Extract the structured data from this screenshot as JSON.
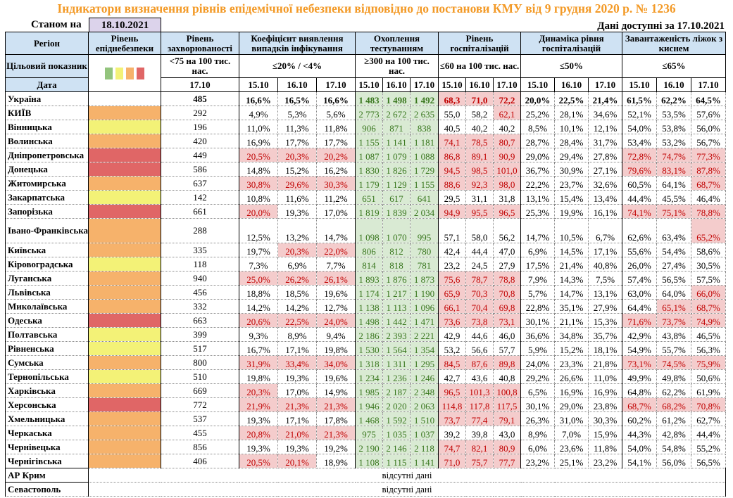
{
  "title": "Індикатори визначення рівнів епідемічної небезпеки відповідно до постанови КМУ від 9 грудня 2020 р. № 1236",
  "as_of_label": "Станом на",
  "as_of_date": "18.10.2021",
  "available": "Дані доступні за 17.10.2021",
  "headers": {
    "region": "Регіон",
    "level": "Рівень епіднебезпеки",
    "incidence": "Рівень захворюваності",
    "detection": "Коефіцієнт виявлення випадків інфікування",
    "testing": "Охоплення тестуванням",
    "hosp": "Рівень госпіталізацій",
    "dyn": "Динаміка рівня госпіталізацій",
    "beds": "Завантаженість ліжок з киснем"
  },
  "targets": {
    "label": "Цільовий показник",
    "incidence": "<75 на 100 тис. нас.",
    "detection": "≤20% / <4%",
    "testing": "≥300 на 100 тис. нас.",
    "hosp": "≤60 на 100 тис. нас.",
    "dyn": "≤50%",
    "beds": "≤65%"
  },
  "date_label": "Дата",
  "inc_date": "17.10",
  "dates": [
    "15.10",
    "16.10",
    "17.10"
  ],
  "level_colors": {
    "green": "#93c47d",
    "yellow": "#f3f277",
    "orange": "#f6b26b",
    "red": "#e06666"
  },
  "total": {
    "name": "Україна",
    "inc": "485",
    "det": [
      "16,6%",
      "16,5%",
      "16,6%"
    ],
    "test": [
      "1 483",
      "1 498",
      "1 492"
    ],
    "hosp": [
      "68,3",
      "71,0",
      "72,2"
    ],
    "dyn": [
      "20,0%",
      "22,5%",
      "21,4%"
    ],
    "beds": [
      "61,5%",
      "62,2%",
      "64,5%"
    ]
  },
  "rows": [
    {
      "name": "КИЇВ",
      "lvl": "orange",
      "inc": "292",
      "det": [
        "4,9%",
        "5,3%",
        "5,6%"
      ],
      "test": [
        "2 773",
        "2 672",
        "2 635"
      ],
      "hosp": [
        "55,0",
        "58,2",
        "62,1"
      ],
      "dyn": [
        "25,2%",
        "28,1%",
        "34,6%"
      ],
      "beds": [
        "52,1%",
        "53,5%",
        "57,6%"
      ]
    },
    {
      "name": "Вінницька",
      "lvl": "yellow",
      "inc": "196",
      "det": [
        "11,0%",
        "11,3%",
        "11,8%"
      ],
      "test": [
        "906",
        "871",
        "838"
      ],
      "hosp": [
        "40,5",
        "40,2",
        "40,2"
      ],
      "dyn": [
        "8,5%",
        "10,1%",
        "12,1%"
      ],
      "beds": [
        "54,0%",
        "53,8%",
        "56,0%"
      ]
    },
    {
      "name": "Волинська",
      "lvl": "orange",
      "inc": "420",
      "det": [
        "16,9%",
        "17,7%",
        "17,7%"
      ],
      "test": [
        "1 155",
        "1 141",
        "1 181"
      ],
      "hosp": [
        "74,1",
        "78,5",
        "80,7"
      ],
      "dyn": [
        "28,7%",
        "28,4%",
        "31,7%"
      ],
      "beds": [
        "53,4%",
        "53,2%",
        "56,7%"
      ]
    },
    {
      "name": "Дніпропетровська",
      "lvl": "red",
      "inc": "449",
      "det": [
        "20,5%",
        "20,3%",
        "20,2%"
      ],
      "test": [
        "1 087",
        "1 079",
        "1 088"
      ],
      "hosp": [
        "86,8",
        "89,1",
        "90,9"
      ],
      "dyn": [
        "29,0%",
        "29,4%",
        "27,8%"
      ],
      "beds": [
        "72,8%",
        "74,7%",
        "77,3%"
      ]
    },
    {
      "name": "Донецька",
      "lvl": "red",
      "inc": "586",
      "det": [
        "14,8%",
        "15,2%",
        "16,2%"
      ],
      "test": [
        "1 830",
        "1 826",
        "1 729"
      ],
      "hosp": [
        "94,5",
        "98,5",
        "101,0"
      ],
      "dyn": [
        "36,7%",
        "30,9%",
        "27,1%"
      ],
      "beds": [
        "79,6%",
        "83,1%",
        "87,8%"
      ]
    },
    {
      "name": "Житомирська",
      "lvl": "orange",
      "inc": "637",
      "det": [
        "30,8%",
        "29,6%",
        "30,3%"
      ],
      "test": [
        "1 179",
        "1 129",
        "1 155"
      ],
      "hosp": [
        "88,6",
        "92,3",
        "98,0"
      ],
      "dyn": [
        "22,2%",
        "23,7%",
        "32,6%"
      ],
      "beds": [
        "60,5%",
        "64,1%",
        "68,7%"
      ]
    },
    {
      "name": "Закарпатська",
      "lvl": "yellow",
      "inc": "142",
      "det": [
        "10,8%",
        "11,6%",
        "11,2%"
      ],
      "test": [
        "651",
        "617",
        "641"
      ],
      "hosp": [
        "29,5",
        "31,1",
        "31,8"
      ],
      "dyn": [
        "13,1%",
        "15,4%",
        "13,4%"
      ],
      "beds": [
        "44,4%",
        "45,5%",
        "46,4%"
      ]
    },
    {
      "name": "Запорізька",
      "lvl": "red",
      "inc": "661",
      "det": [
        "20,0%",
        "19,3%",
        "17,0%"
      ],
      "test": [
        "1 819",
        "1 839",
        "2 034"
      ],
      "hosp": [
        "94,9",
        "95,5",
        "96,5"
      ],
      "dyn": [
        "25,3%",
        "19,9%",
        "16,1%"
      ],
      "beds": [
        "74,1%",
        "75,1%",
        "78,8%"
      ]
    },
    {
      "name": "Івано-Франківська",
      "lvl": "orange",
      "inc": "288",
      "det": [
        "12,5%",
        "13,2%",
        "14,7%"
      ],
      "test": [
        "1 098",
        "1 070",
        "995"
      ],
      "hosp": [
        "57,1",
        "58,0",
        "56,2"
      ],
      "dyn": [
        "14,7%",
        "10,5%",
        "6,7%"
      ],
      "beds": [
        "62,6%",
        "63,4%",
        "65,2%"
      ]
    },
    {
      "name": "Київська",
      "lvl": "orange",
      "inc": "335",
      "det": [
        "19,7%",
        "20,3%",
        "22,0%"
      ],
      "test": [
        "806",
        "812",
        "780"
      ],
      "hosp": [
        "42,4",
        "44,4",
        "47,0"
      ],
      "dyn": [
        "6,9%",
        "14,5%",
        "17,1%"
      ],
      "beds": [
        "55,6%",
        "54,4%",
        "58,6%"
      ]
    },
    {
      "name": "Кіровоградська",
      "lvl": "yellow",
      "inc": "118",
      "det": [
        "7,3%",
        "6,9%",
        "7,7%"
      ],
      "test": [
        "814",
        "818",
        "781"
      ],
      "hosp": [
        "23,2",
        "24,5",
        "27,9"
      ],
      "dyn": [
        "17,5%",
        "21,4%",
        "40,8%"
      ],
      "beds": [
        "26,0%",
        "27,4%",
        "30,5%"
      ]
    },
    {
      "name": "Луганська",
      "lvl": "orange",
      "inc": "940",
      "det": [
        "25,0%",
        "26,2%",
        "26,1%"
      ],
      "test": [
        "1 893",
        "1 876",
        "1 873"
      ],
      "hosp": [
        "75,6",
        "78,7",
        "78,8"
      ],
      "dyn": [
        "7,9%",
        "14,3%",
        "7,5%"
      ],
      "beds": [
        "57,4%",
        "56,5%",
        "57,5%"
      ]
    },
    {
      "name": "Львівська",
      "lvl": "orange",
      "inc": "456",
      "det": [
        "18,8%",
        "18,5%",
        "19,6%"
      ],
      "test": [
        "1 174",
        "1 217",
        "1 190"
      ],
      "hosp": [
        "65,9",
        "70,3",
        "70,8"
      ],
      "dyn": [
        "5,7%",
        "14,7%",
        "13,1%"
      ],
      "beds": [
        "63,0%",
        "64,0%",
        "66,0%"
      ]
    },
    {
      "name": "Миколаївська",
      "lvl": "orange",
      "inc": "332",
      "det": [
        "14,2%",
        "14,2%",
        "12,7%"
      ],
      "test": [
        "1 138",
        "1 113",
        "1 096"
      ],
      "hosp": [
        "66,1",
        "70,4",
        "69,8"
      ],
      "dyn": [
        "22,8%",
        "35,1%",
        "27,9%"
      ],
      "beds": [
        "64,4%",
        "65,1%",
        "68,7%"
      ]
    },
    {
      "name": "Одеська",
      "lvl": "red",
      "inc": "663",
      "det": [
        "20,6%",
        "22,5%",
        "24,0%"
      ],
      "test": [
        "1 498",
        "1 442",
        "1 471"
      ],
      "hosp": [
        "73,6",
        "73,8",
        "73,1"
      ],
      "dyn": [
        "30,1%",
        "21,1%",
        "15,3%"
      ],
      "beds": [
        "71,6%",
        "73,7%",
        "74,9%"
      ]
    },
    {
      "name": "Полтавська",
      "lvl": "yellow",
      "inc": "399",
      "det": [
        "9,3%",
        "8,9%",
        "9,4%"
      ],
      "test": [
        "2 186",
        "2 393",
        "2 221"
      ],
      "hosp": [
        "42,9",
        "44,6",
        "46,0"
      ],
      "dyn": [
        "36,6%",
        "34,8%",
        "35,7%"
      ],
      "beds": [
        "42,9%",
        "43,8%",
        "46,5%"
      ]
    },
    {
      "name": "Рівненська",
      "lvl": "yellow",
      "inc": "517",
      "det": [
        "16,7%",
        "17,1%",
        "19,8%"
      ],
      "test": [
        "1 530",
        "1 564",
        "1 354"
      ],
      "hosp": [
        "53,2",
        "56,6",
        "57,7"
      ],
      "dyn": [
        "5,9%",
        "15,2%",
        "18,1%"
      ],
      "beds": [
        "54,9%",
        "55,7%",
        "56,3%"
      ]
    },
    {
      "name": "Сумська",
      "lvl": "orange",
      "inc": "800",
      "det": [
        "31,9%",
        "33,4%",
        "34,0%"
      ],
      "test": [
        "1 318",
        "1 311",
        "1 295"
      ],
      "hosp": [
        "84,5",
        "87,6",
        "89,8"
      ],
      "dyn": [
        "24,0%",
        "23,3%",
        "21,8%"
      ],
      "beds": [
        "73,1%",
        "74,5%",
        "75,9%"
      ]
    },
    {
      "name": "Тернопільська",
      "lvl": "yellow",
      "inc": "510",
      "det": [
        "19,8%",
        "19,3%",
        "19,6%"
      ],
      "test": [
        "1 234",
        "1 236",
        "1 246"
      ],
      "hosp": [
        "42,7",
        "43,6",
        "40,8"
      ],
      "dyn": [
        "29,2%",
        "26,6%",
        "11,0%"
      ],
      "beds": [
        "49,9%",
        "49,8%",
        "50,6%"
      ]
    },
    {
      "name": "Харківська",
      "lvl": "orange",
      "inc": "669",
      "det": [
        "20,3%",
        "17,0%",
        "14,9%"
      ],
      "test": [
        "1 985",
        "2 187",
        "2 348"
      ],
      "hosp": [
        "96,5",
        "101,3",
        "100,8"
      ],
      "dyn": [
        "6,5%",
        "16,9%",
        "16,9%"
      ],
      "beds": [
        "64,8%",
        "62,2%",
        "61,9%"
      ]
    },
    {
      "name": "Херсонська",
      "lvl": "red",
      "inc": "772",
      "det": [
        "21,9%",
        "21,3%",
        "21,3%"
      ],
      "test": [
        "1 946",
        "2 020",
        "2 063"
      ],
      "hosp": [
        "114,8",
        "117,8",
        "117,5"
      ],
      "dyn": [
        "30,1%",
        "29,0%",
        "23,8%"
      ],
      "beds": [
        "68,7%",
        "68,2%",
        "70,8%"
      ]
    },
    {
      "name": "Хмельницька",
      "lvl": "orange",
      "inc": "537",
      "det": [
        "19,3%",
        "17,1%",
        "17,8%"
      ],
      "test": [
        "1 468",
        "1 592",
        "1 510"
      ],
      "hosp": [
        "73,7",
        "77,4",
        "79,1"
      ],
      "dyn": [
        "26,3%",
        "31,0%",
        "30,3%"
      ],
      "beds": [
        "60,2%",
        "61,2%",
        "62,7%"
      ]
    },
    {
      "name": "Черкаська",
      "lvl": "orange",
      "inc": "455",
      "det": [
        "20,8%",
        "21,0%",
        "21,3%"
      ],
      "test": [
        "975",
        "1 035",
        "1 037"
      ],
      "hosp": [
        "39,2",
        "39,8",
        "43,0"
      ],
      "dyn": [
        "8,9%",
        "7,0%",
        "15,9%"
      ],
      "beds": [
        "44,3%",
        "42,8%",
        "44,4%"
      ]
    },
    {
      "name": "Чернівецька",
      "lvl": "orange",
      "inc": "856",
      "det": [
        "19,3%",
        "19,3%",
        "19,2%"
      ],
      "test": [
        "2 190",
        "2 146",
        "2 118"
      ],
      "hosp": [
        "74,7",
        "82,1",
        "80,9"
      ],
      "dyn": [
        "6,0%",
        "23,6%",
        "11,8%"
      ],
      "beds": [
        "54,0%",
        "54,8%",
        "55,2%"
      ]
    },
    {
      "name": "Чернігівська",
      "lvl": "orange",
      "inc": "406",
      "det": [
        "20,5%",
        "20,1%",
        "18,9%"
      ],
      "test": [
        "1 108",
        "1 115",
        "1 141"
      ],
      "hosp": [
        "71,0",
        "75,7",
        "77,7"
      ],
      "dyn": [
        "23,2%",
        "25,1%",
        "23,2%"
      ],
      "beds": [
        "54,1%",
        "56,0%",
        "56,5%"
      ]
    }
  ],
  "missing": [
    {
      "name": "АР Крим",
      "text": "відсутні дані"
    },
    {
      "name": "Севастополь",
      "text": "відсутні дані"
    }
  ]
}
